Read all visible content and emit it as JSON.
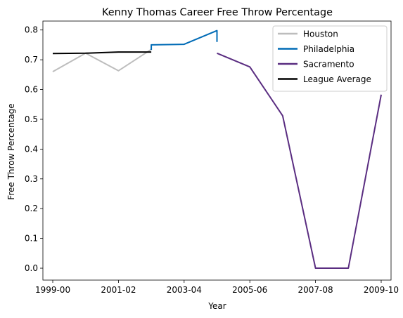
{
  "chart_data": {
    "type": "line",
    "title": "Kenny Thomas  Career Free Throw Percentage",
    "xlabel": "Year",
    "ylabel": "Free Throw Percentage",
    "x_ticks": [
      "1999-00",
      "2001-02",
      "2003-04",
      "2005-06",
      "2007-08",
      "2009-10"
    ],
    "y_ticks": [
      "0.0",
      "0.1",
      "0.2",
      "0.3",
      "0.4",
      "0.5",
      "0.6",
      "0.7",
      "0.8"
    ],
    "xlim": [
      -0.3,
      10.3
    ],
    "ylim": [
      -0.04,
      0.83
    ],
    "grid": false,
    "legend_position": "top-right",
    "series": [
      {
        "name": "Houston",
        "color": "#bdbdbd",
        "points": [
          [
            0,
            0.66
          ],
          [
            1,
            0.722
          ],
          [
            2,
            0.663
          ],
          [
            3,
            0.735
          ]
        ]
      },
      {
        "name": "Philadelphia",
        "color": "#006bb6",
        "points": [
          [
            3,
            0.733
          ],
          [
            3,
            0.75
          ],
          [
            4,
            0.752
          ],
          [
            5,
            0.798
          ],
          [
            5,
            0.76
          ]
        ]
      },
      {
        "name": "Sacramento",
        "color": "#5a2d81",
        "points": [
          [
            5,
            0.722
          ],
          [
            6,
            0.676
          ],
          [
            7,
            0.512
          ],
          [
            8,
            0.0
          ],
          [
            9,
            0.0
          ],
          [
            10,
            0.583
          ]
        ]
      },
      {
        "name": "League Average",
        "color": "#000000",
        "points": [
          [
            0,
            0.721
          ],
          [
            1,
            0.722
          ],
          [
            2,
            0.726
          ],
          [
            3,
            0.726
          ]
        ]
      }
    ]
  }
}
